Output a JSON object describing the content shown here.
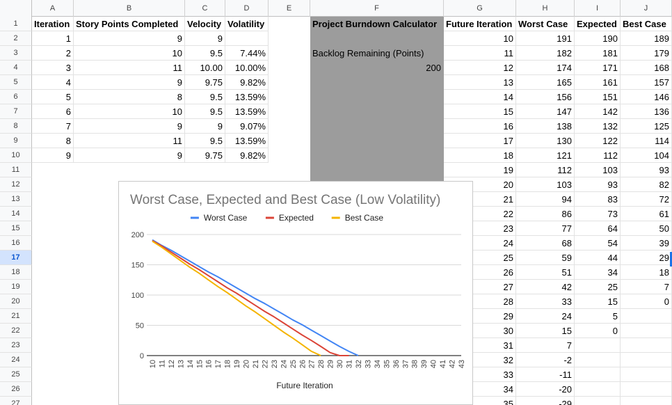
{
  "columns": [
    "A",
    "B",
    "C",
    "D",
    "E",
    "F",
    "G",
    "H",
    "I",
    "J"
  ],
  "rows": [
    "1",
    "2",
    "3",
    "4",
    "5",
    "6",
    "7",
    "8",
    "9",
    "10",
    "11",
    "12",
    "13",
    "14",
    "15",
    "16",
    "17",
    "18",
    "19",
    "20",
    "21",
    "22",
    "23",
    "24",
    "25",
    "26",
    "27"
  ],
  "selected_row": "17",
  "headers": {
    "iteration": "Iteration",
    "story_points": "Story Points Completed",
    "velocity": "Velocity",
    "volatility": "Volatility",
    "calculator": "Project Burndown Calculator",
    "future_iteration": "Future Iteration",
    "worst_case": "Worst Case",
    "expected": "Expected",
    "best_case": "Best Case"
  },
  "iterations": [
    {
      "iteration": "1",
      "points": "9",
      "velocity": "9",
      "volatility": ""
    },
    {
      "iteration": "2",
      "points": "10",
      "velocity": "9.5",
      "volatility": "7.44%"
    },
    {
      "iteration": "3",
      "points": "11",
      "velocity": "10.00",
      "volatility": "10.00%"
    },
    {
      "iteration": "4",
      "points": "9",
      "velocity": "9.75",
      "volatility": "9.82%"
    },
    {
      "iteration": "5",
      "points": "8",
      "velocity": "9.5",
      "volatility": "13.59%"
    },
    {
      "iteration": "6",
      "points": "10",
      "velocity": "9.5",
      "volatility": "13.59%"
    },
    {
      "iteration": "7",
      "points": "9",
      "velocity": "9",
      "volatility": "9.07%"
    },
    {
      "iteration": "8",
      "points": "11",
      "velocity": "9.5",
      "volatility": "13.59%"
    },
    {
      "iteration": "9",
      "points": "9",
      "velocity": "9.75",
      "volatility": "9.82%"
    }
  ],
  "backlog_label": "Backlog Remaining (Points)",
  "backlog_value": "200",
  "forecast": [
    {
      "it": "10",
      "worst": "191",
      "exp": "190",
      "best": "189"
    },
    {
      "it": "11",
      "worst": "182",
      "exp": "181",
      "best": "179"
    },
    {
      "it": "12",
      "worst": "174",
      "exp": "171",
      "best": "168"
    },
    {
      "it": "13",
      "worst": "165",
      "exp": "161",
      "best": "157"
    },
    {
      "it": "14",
      "worst": "156",
      "exp": "151",
      "best": "146"
    },
    {
      "it": "15",
      "worst": "147",
      "exp": "142",
      "best": "136"
    },
    {
      "it": "16",
      "worst": "138",
      "exp": "132",
      "best": "125"
    },
    {
      "it": "17",
      "worst": "130",
      "exp": "122",
      "best": "114"
    },
    {
      "it": "18",
      "worst": "121",
      "exp": "112",
      "best": "104"
    },
    {
      "it": "19",
      "worst": "112",
      "exp": "103",
      "best": "93"
    },
    {
      "it": "20",
      "worst": "103",
      "exp": "93",
      "best": "82"
    },
    {
      "it": "21",
      "worst": "94",
      "exp": "83",
      "best": "72"
    },
    {
      "it": "22",
      "worst": "86",
      "exp": "73",
      "best": "61"
    },
    {
      "it": "23",
      "worst": "77",
      "exp": "64",
      "best": "50"
    },
    {
      "it": "24",
      "worst": "68",
      "exp": "54",
      "best": "39"
    },
    {
      "it": "25",
      "worst": "59",
      "exp": "44",
      "best": "29"
    },
    {
      "it": "26",
      "worst": "51",
      "exp": "34",
      "best": "18"
    },
    {
      "it": "27",
      "worst": "42",
      "exp": "25",
      "best": "7"
    },
    {
      "it": "28",
      "worst": "33",
      "exp": "15",
      "best": "0"
    },
    {
      "it": "29",
      "worst": "24",
      "exp": "5",
      "best": ""
    },
    {
      "it": "30",
      "worst": "15",
      "exp": "0",
      "best": ""
    },
    {
      "it": "31",
      "worst": "7",
      "exp": "",
      "best": ""
    },
    {
      "it": "32",
      "worst": "-2",
      "exp": "",
      "best": ""
    },
    {
      "it": "33",
      "worst": "-11",
      "exp": "",
      "best": ""
    },
    {
      "it": "34",
      "worst": "-20",
      "exp": "",
      "best": ""
    },
    {
      "it": "35",
      "worst": "-29",
      "exp": "",
      "best": ""
    }
  ],
  "chart_data": {
    "type": "line",
    "title": "Worst Case, Expected and Best Case (Low Volatility)",
    "xlabel": "Future Iteration",
    "ylabel": "",
    "ylim": [
      0,
      200
    ],
    "yticks": [
      0,
      50,
      100,
      150,
      200
    ],
    "x": [
      10,
      11,
      12,
      13,
      14,
      15,
      16,
      17,
      18,
      19,
      20,
      21,
      22,
      23,
      24,
      25,
      26,
      27,
      28,
      29,
      30,
      31,
      32,
      33,
      34,
      35,
      36,
      37,
      38,
      39,
      40,
      41,
      42,
      43
    ],
    "legend_position": "top",
    "grid": true,
    "series": [
      {
        "name": "Worst Case",
        "color": "#4285f4",
        "values": [
          191,
          182,
          174,
          165,
          156,
          147,
          138,
          130,
          121,
          112,
          103,
          94,
          86,
          77,
          68,
          59,
          51,
          42,
          33,
          24,
          15,
          7,
          0,
          null,
          null,
          null,
          null,
          null,
          null,
          null,
          null,
          null,
          null,
          null
        ]
      },
      {
        "name": "Expected",
        "color": "#db4437",
        "values": [
          190,
          181,
          171,
          161,
          151,
          142,
          132,
          122,
          112,
          103,
          93,
          83,
          73,
          64,
          54,
          44,
          34,
          25,
          15,
          5,
          0,
          0,
          null,
          null,
          null,
          null,
          null,
          null,
          null,
          null,
          null,
          null,
          null,
          null
        ]
      },
      {
        "name": "Best Case",
        "color": "#f4b400",
        "values": [
          189,
          179,
          168,
          157,
          146,
          136,
          125,
          114,
          104,
          93,
          82,
          72,
          61,
          50,
          39,
          29,
          18,
          7,
          0,
          null,
          null,
          null,
          null,
          null,
          null,
          null,
          null,
          null,
          null,
          null,
          null,
          null,
          null,
          null
        ]
      }
    ]
  }
}
